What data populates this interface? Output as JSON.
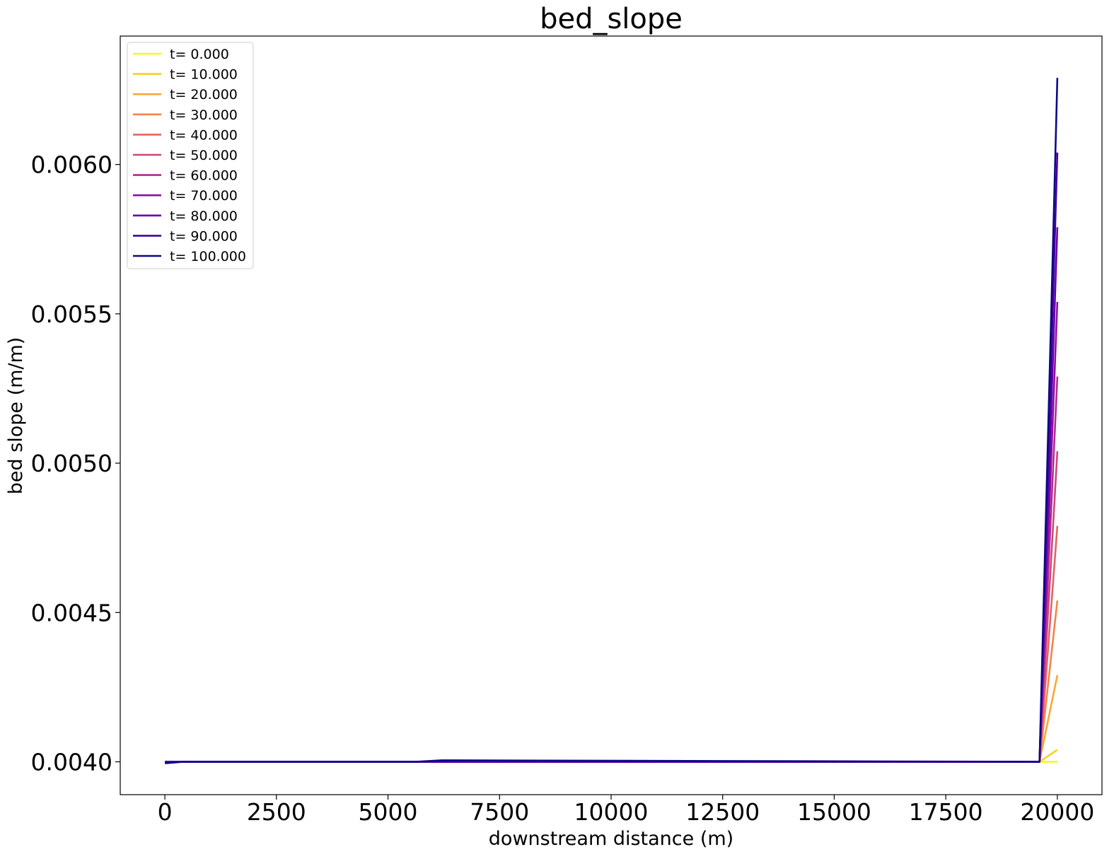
{
  "chart_data": {
    "type": "line",
    "title": "bed_slope",
    "xlabel": "downstream distance (m)",
    "ylabel": "bed slope (m/m)",
    "xlim": [
      -1000,
      21000
    ],
    "ylim": [
      0.00389,
      0.00643
    ],
    "xticks": [
      0,
      2500,
      5000,
      7500,
      10000,
      12500,
      15000,
      17500,
      20000
    ],
    "xtick_labels": [
      "0",
      "2500",
      "5000",
      "7500",
      "10000",
      "12500",
      "15000",
      "17500",
      "20000"
    ],
    "yticks": [
      0.004,
      0.0045,
      0.005,
      0.0055,
      0.006
    ],
    "ytick_labels": [
      "0.0040",
      "0.0045",
      "0.0050",
      "0.0055",
      "0.0060"
    ],
    "grid": false,
    "legend_position": "top-left",
    "x": [
      0,
      400,
      5600,
      6200,
      19600,
      20000
    ],
    "series": [
      {
        "name": "t= 0.000",
        "color": "#f0f921",
        "values": [
          0.004,
          0.004,
          0.004,
          0.004,
          0.004,
          0.004
        ]
      },
      {
        "name": "t= 10.000",
        "color": "#fcce25",
        "values": [
          0.004,
          0.004,
          0.004,
          0.004,
          0.004,
          0.00404
        ]
      },
      {
        "name": "t= 20.000",
        "color": "#fca636",
        "values": [
          0.004,
          0.004,
          0.004,
          0.004,
          0.004,
          0.00429
        ]
      },
      {
        "name": "t= 30.000",
        "color": "#f2844b",
        "values": [
          0.004,
          0.004,
          0.004,
          0.004,
          0.004,
          0.00454
        ]
      },
      {
        "name": "t= 40.000",
        "color": "#e16462",
        "values": [
          0.004,
          0.004,
          0.004,
          0.004,
          0.004,
          0.00479
        ]
      },
      {
        "name": "t= 50.000",
        "color": "#cc4778",
        "values": [
          0.004,
          0.004,
          0.004,
          0.004,
          0.004,
          0.00504
        ]
      },
      {
        "name": "t= 60.000",
        "color": "#b12a90",
        "values": [
          0.004,
          0.004,
          0.004,
          0.004,
          0.004,
          0.00529
        ]
      },
      {
        "name": "t= 70.000",
        "color": "#8f0da4",
        "values": [
          0.004,
          0.004,
          0.004,
          0.004,
          0.004,
          0.00554
        ]
      },
      {
        "name": "t= 80.000",
        "color": "#6a00a8",
        "values": [
          0.004,
          0.004,
          0.004,
          0.004,
          0.004,
          0.00579
        ]
      },
      {
        "name": "t= 90.000",
        "color": "#41049d",
        "values": [
          0.004,
          0.004,
          0.004,
          0.004,
          0.004,
          0.00604
        ]
      },
      {
        "name": "t= 100.000",
        "color": "#0d0887",
        "values": [
          0.003995,
          0.004,
          0.004,
          0.004005,
          0.004,
          0.00629
        ]
      }
    ]
  }
}
